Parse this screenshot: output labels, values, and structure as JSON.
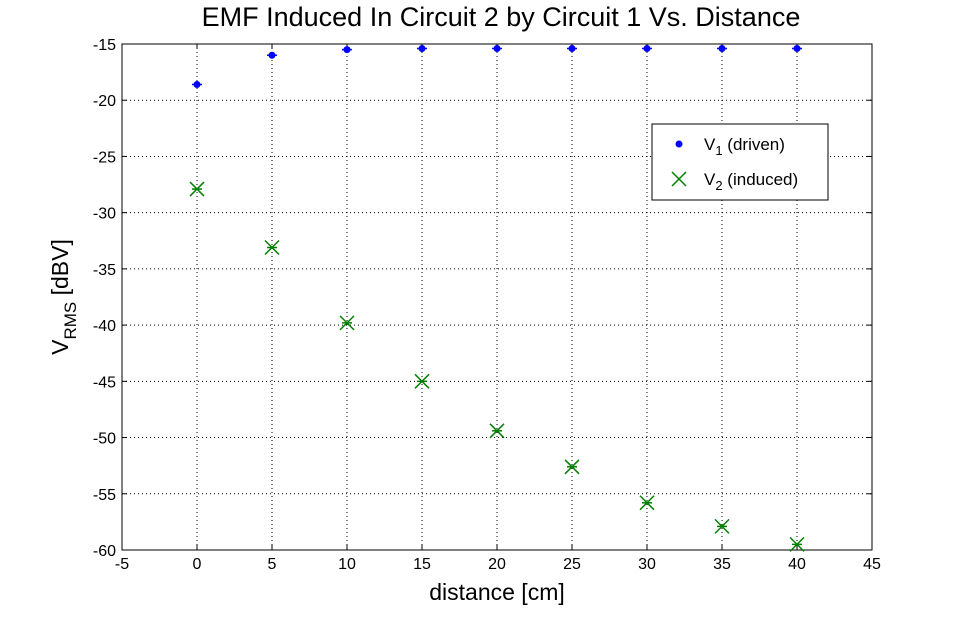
{
  "chart_data": {
    "type": "scatter",
    "title": "EMF Induced In Circuit 2 by Circuit 1 Vs. Distance",
    "xlabel": "distance [cm]",
    "ylabel_main": "V",
    "ylabel_sub": "RMS",
    "ylabel_unit": " [dBV]",
    "xlim": [
      -5,
      45
    ],
    "ylim": [
      -60,
      -15
    ],
    "xticks": [
      -5,
      0,
      5,
      10,
      15,
      20,
      25,
      30,
      35,
      40,
      45
    ],
    "yticks": [
      -15,
      -20,
      -25,
      -30,
      -35,
      -40,
      -45,
      -50,
      -55,
      -60
    ],
    "grid": true,
    "legend_position": "top-right",
    "series": [
      {
        "legend_main": "V",
        "legend_sub": "1",
        "legend_rest": " (driven)",
        "marker": "dot",
        "color": "#0000ff",
        "x": [
          0,
          5,
          10,
          15,
          20,
          25,
          30,
          35,
          40
        ],
        "y": [
          -18.6,
          -16.0,
          -15.5,
          -15.4,
          -15.4,
          -15.4,
          -15.4,
          -15.4,
          -15.4
        ]
      },
      {
        "legend_main": "V",
        "legend_sub": "2",
        "legend_rest": " (induced)",
        "marker": "x",
        "color": "#008000",
        "x": [
          0,
          5,
          10,
          15,
          20,
          25,
          30,
          35,
          40
        ],
        "y": [
          -27.9,
          -33.1,
          -39.8,
          -45.0,
          -49.4,
          -52.6,
          -55.8,
          -57.9,
          -59.5
        ]
      }
    ]
  }
}
